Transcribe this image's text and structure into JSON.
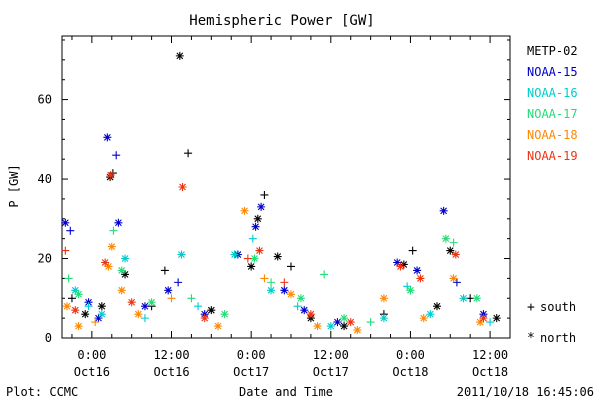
{
  "chart_data": {
    "type": "scatter",
    "title": "Hemispheric Power [GW]",
    "xlabel": "Date and Time",
    "ylabel": "P [GW]",
    "xlim": [
      "2011-10-15T19:30",
      "2011-10-18T15:00"
    ],
    "ylim": [
      0,
      76
    ],
    "y_ticks": [
      0,
      20,
      40,
      60
    ],
    "x_ticks": [
      {
        "time": "2011-10-16T00:00",
        "top": "0:00",
        "bottom": "Oct16"
      },
      {
        "time": "2011-10-16T12:00",
        "top": "12:00",
        "bottom": "Oct16"
      },
      {
        "time": "2011-10-17T00:00",
        "top": "0:00",
        "bottom": "Oct17"
      },
      {
        "time": "2011-10-17T12:00",
        "top": "12:00",
        "bottom": "Oct17"
      },
      {
        "time": "2011-10-18T00:00",
        "top": "0:00",
        "bottom": "Oct18"
      },
      {
        "time": "2011-10-18T12:00",
        "top": "12:00",
        "bottom": "Oct18"
      }
    ],
    "grid": false,
    "legend_position": "right",
    "markers": {
      "south": "+",
      "north": "*"
    },
    "series": [
      {
        "name": "METP-02",
        "color": "#000000",
        "points": [
          [
            "2011-10-15T21:00",
            10,
            "+"
          ],
          [
            "2011-10-15T23:00",
            6,
            "*"
          ],
          [
            "2011-10-16T01:30",
            8,
            "*"
          ],
          [
            "2011-10-16T02:45",
            40.5,
            "*"
          ],
          [
            "2011-10-16T03:10",
            41.5,
            "+"
          ],
          [
            "2011-10-16T05:00",
            16,
            "*"
          ],
          [
            "2011-10-16T09:00",
            8,
            "+"
          ],
          [
            "2011-10-16T11:00",
            17,
            "+"
          ],
          [
            "2011-10-16T13:15",
            71,
            "*"
          ],
          [
            "2011-10-16T14:30",
            46.5,
            "+"
          ],
          [
            "2011-10-16T18:00",
            7,
            "*"
          ],
          [
            "2011-10-17T00:00",
            18,
            "*"
          ],
          [
            "2011-10-17T01:00",
            30,
            "*"
          ],
          [
            "2011-10-17T02:00",
            36,
            "+"
          ],
          [
            "2011-10-17T04:00",
            20.5,
            "*"
          ],
          [
            "2011-10-17T06:00",
            18,
            "+"
          ],
          [
            "2011-10-17T09:00",
            5,
            "*"
          ],
          [
            "2011-10-17T14:00",
            3,
            "*"
          ],
          [
            "2011-10-17T20:00",
            6,
            "+"
          ],
          [
            "2011-10-17T23:00",
            18.5,
            "*"
          ],
          [
            "2011-10-18T00:20",
            22,
            "+"
          ],
          [
            "2011-10-18T04:00",
            8,
            "*"
          ],
          [
            "2011-10-18T06:00",
            22,
            "*"
          ],
          [
            "2011-10-18T09:00",
            10,
            "+"
          ],
          [
            "2011-10-18T13:00",
            5,
            "*"
          ]
        ]
      },
      {
        "name": "NOAA-15",
        "color": "#0000cc",
        "points": [
          [
            "2011-10-15T20:00",
            29,
            "*"
          ],
          [
            "2011-10-15T20:45",
            27,
            "+"
          ],
          [
            "2011-10-15T23:30",
            9,
            "*"
          ],
          [
            "2011-10-16T01:00",
            5,
            "*"
          ],
          [
            "2011-10-16T02:20",
            50.5,
            "*"
          ],
          [
            "2011-10-16T03:40",
            46,
            "+"
          ],
          [
            "2011-10-16T04:00",
            29,
            "*"
          ],
          [
            "2011-10-16T08:00",
            8,
            "*"
          ],
          [
            "2011-10-16T11:30",
            12,
            "*"
          ],
          [
            "2011-10-16T13:00",
            14,
            "+"
          ],
          [
            "2011-10-16T17:00",
            6,
            "*"
          ],
          [
            "2011-10-16T22:00",
            21,
            "*"
          ],
          [
            "2011-10-17T00:40",
            28,
            "*"
          ],
          [
            "2011-10-17T01:30",
            33,
            "*"
          ],
          [
            "2011-10-17T05:00",
            12,
            "*"
          ],
          [
            "2011-10-17T08:00",
            7,
            "*"
          ],
          [
            "2011-10-17T13:00",
            4,
            "*"
          ],
          [
            "2011-10-17T22:00",
            19,
            "*"
          ],
          [
            "2011-10-18T01:00",
            17,
            "*"
          ],
          [
            "2011-10-18T05:00",
            32,
            "*"
          ],
          [
            "2011-10-18T07:00",
            14,
            "+"
          ],
          [
            "2011-10-18T11:00",
            6,
            "*"
          ]
        ]
      },
      {
        "name": "NOAA-16",
        "color": "#00cccc",
        "points": [
          [
            "2011-10-15T21:30",
            12,
            "*"
          ],
          [
            "2011-10-15T23:30",
            8,
            "+"
          ],
          [
            "2011-10-16T01:30",
            6,
            "*"
          ],
          [
            "2011-10-16T05:00",
            20,
            "*"
          ],
          [
            "2011-10-16T08:00",
            5,
            "+"
          ],
          [
            "2011-10-16T13:30",
            21,
            "*"
          ],
          [
            "2011-10-16T16:00",
            8,
            "+"
          ],
          [
            "2011-10-16T21:30",
            21,
            "*"
          ],
          [
            "2011-10-17T00:15",
            25,
            "+"
          ],
          [
            "2011-10-17T03:00",
            12,
            "*"
          ],
          [
            "2011-10-17T07:00",
            8,
            "+"
          ],
          [
            "2011-10-17T12:00",
            3,
            "*"
          ],
          [
            "2011-10-17T20:00",
            5,
            "*"
          ],
          [
            "2011-10-17T23:30",
            13,
            "+"
          ],
          [
            "2011-10-18T03:00",
            6,
            "*"
          ],
          [
            "2011-10-18T08:00",
            10,
            "*"
          ],
          [
            "2011-10-18T12:00",
            4,
            "+"
          ]
        ]
      },
      {
        "name": "NOAA-17",
        "color": "#22dd77",
        "points": [
          [
            "2011-10-15T20:30",
            15,
            "+"
          ],
          [
            "2011-10-15T22:00",
            11,
            "*"
          ],
          [
            "2011-10-16T03:15",
            27,
            "+"
          ],
          [
            "2011-10-16T04:30",
            17,
            "*"
          ],
          [
            "2011-10-16T09:00",
            9,
            "*"
          ],
          [
            "2011-10-16T15:00",
            10,
            "+"
          ],
          [
            "2011-10-16T20:00",
            6,
            "*"
          ],
          [
            "2011-10-17T00:30",
            20,
            "*"
          ],
          [
            "2011-10-17T03:00",
            14,
            "+"
          ],
          [
            "2011-10-17T07:30",
            10,
            "*"
          ],
          [
            "2011-10-17T11:00",
            16,
            "+"
          ],
          [
            "2011-10-17T14:00",
            5,
            "*"
          ],
          [
            "2011-10-17T18:00",
            4,
            "+"
          ],
          [
            "2011-10-18T00:00",
            12,
            "*"
          ],
          [
            "2011-10-18T05:20",
            25,
            "*"
          ],
          [
            "2011-10-18T06:30",
            24,
            "+"
          ],
          [
            "2011-10-18T10:00",
            10,
            "*"
          ]
        ]
      },
      {
        "name": "NOAA-18",
        "color": "#ff8800",
        "points": [
          [
            "2011-10-15T20:15",
            8,
            "*"
          ],
          [
            "2011-10-15T22:00",
            3,
            "*"
          ],
          [
            "2011-10-16T00:30",
            4,
            "+"
          ],
          [
            "2011-10-16T02:30",
            18,
            "*"
          ],
          [
            "2011-10-16T03:00",
            23,
            "*"
          ],
          [
            "2011-10-16T04:30",
            12,
            "*"
          ],
          [
            "2011-10-16T07:00",
            6,
            "*"
          ],
          [
            "2011-10-16T12:00",
            10,
            "+"
          ],
          [
            "2011-10-16T19:00",
            3,
            "*"
          ],
          [
            "2011-10-16T23:00",
            32,
            "*"
          ],
          [
            "2011-10-17T02:00",
            15,
            "+"
          ],
          [
            "2011-10-17T06:00",
            11,
            "*"
          ],
          [
            "2011-10-17T10:00",
            3,
            "*"
          ],
          [
            "2011-10-17T16:00",
            2,
            "*"
          ],
          [
            "2011-10-17T20:00",
            10,
            "*"
          ],
          [
            "2011-10-18T02:00",
            5,
            "*"
          ],
          [
            "2011-10-18T06:30",
            15,
            "*"
          ],
          [
            "2011-10-18T10:30",
            4,
            "*"
          ]
        ]
      },
      {
        "name": "NOAA-19",
        "color": "#ee3311",
        "points": [
          [
            "2011-10-15T20:00",
            22,
            "+"
          ],
          [
            "2011-10-15T21:30",
            7,
            "*"
          ],
          [
            "2011-10-16T02:00",
            19,
            "*"
          ],
          [
            "2011-10-16T02:50",
            41,
            "*"
          ],
          [
            "2011-10-16T06:00",
            9,
            "*"
          ],
          [
            "2011-10-16T13:40",
            38,
            "*"
          ],
          [
            "2011-10-16T17:00",
            5,
            "*"
          ],
          [
            "2011-10-16T23:30",
            20,
            "+"
          ],
          [
            "2011-10-17T01:15",
            22,
            "*"
          ],
          [
            "2011-10-17T05:00",
            14,
            "+"
          ],
          [
            "2011-10-17T09:00",
            6,
            "*"
          ],
          [
            "2011-10-17T15:00",
            4,
            "*"
          ],
          [
            "2011-10-17T22:30",
            18,
            "*"
          ],
          [
            "2011-10-18T01:30",
            15,
            "*"
          ],
          [
            "2011-10-18T06:50",
            21,
            "*"
          ],
          [
            "2011-10-18T11:00",
            5,
            "*"
          ]
        ]
      }
    ]
  },
  "footer": {
    "plot": "Plot: CCMC",
    "timestamp": "2011/10/18 16:45:06"
  },
  "legend_marker_labels": {
    "south": "south",
    "north": "north"
  }
}
